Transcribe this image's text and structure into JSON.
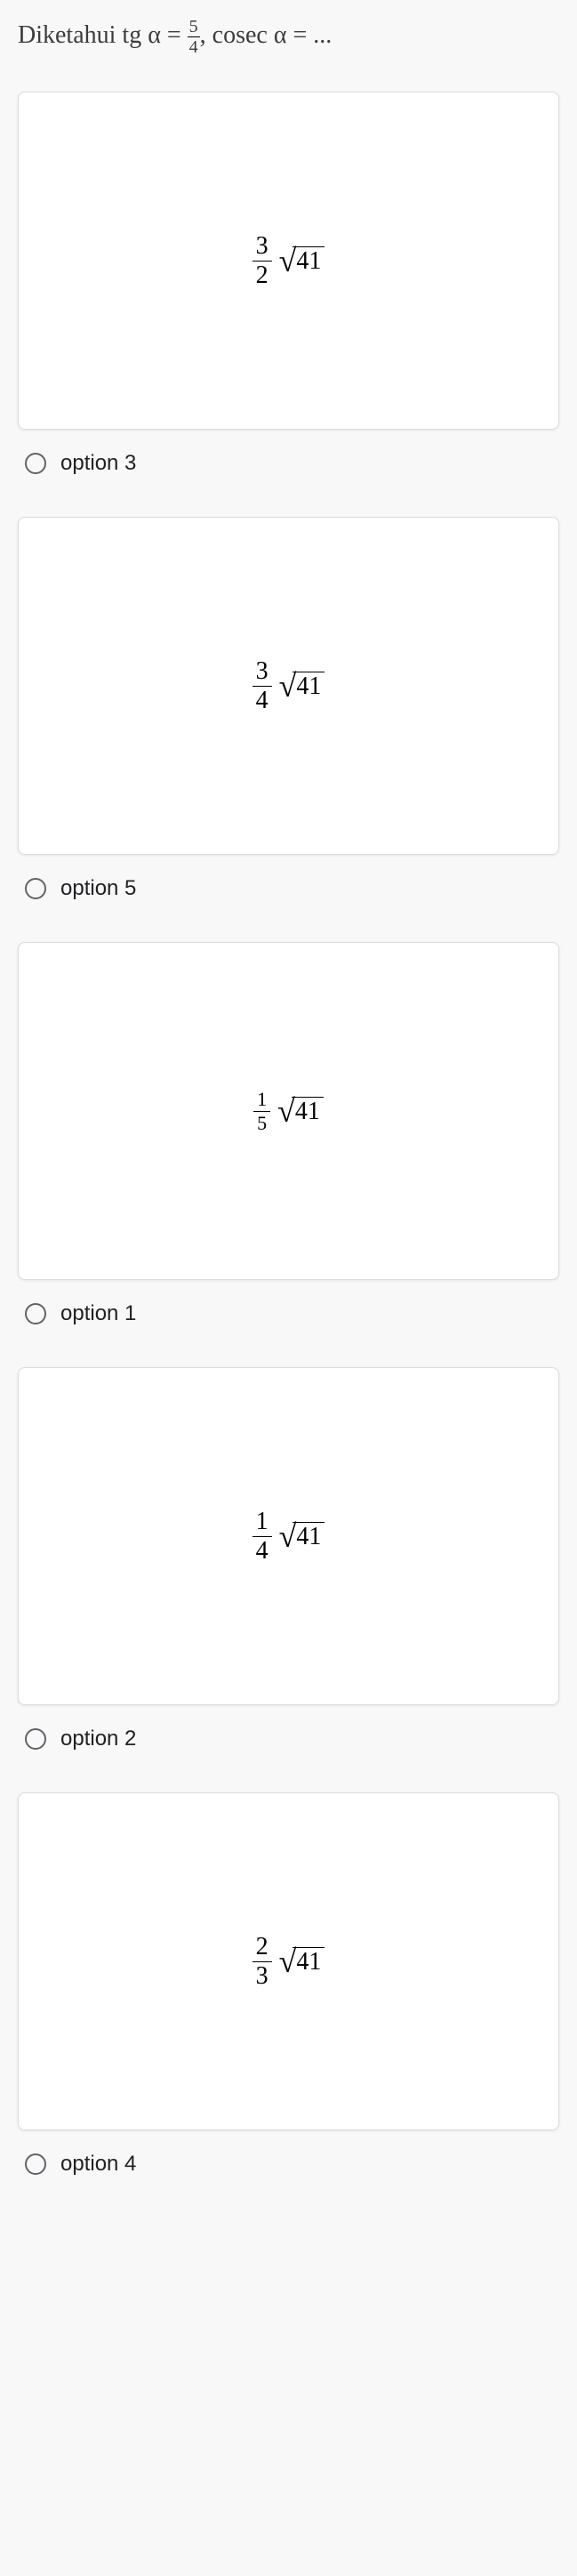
{
  "question": {
    "prefix": "Diketahui tg α =",
    "frac_num": "5",
    "frac_den": "4",
    "suffix": ", cosec α = ..."
  },
  "options": [
    {
      "label": "option 3",
      "frac_num": "3",
      "frac_den": "2",
      "sqrt_arg": "41",
      "frac_small": false
    },
    {
      "label": "option 5",
      "frac_num": "3",
      "frac_den": "4",
      "sqrt_arg": "41",
      "frac_small": false
    },
    {
      "label": "option 1",
      "frac_num": "1",
      "frac_den": "5",
      "sqrt_arg": "41",
      "frac_small": true
    },
    {
      "label": "option 2",
      "frac_num": "1",
      "frac_den": "4",
      "sqrt_arg": "41",
      "frac_small": false
    },
    {
      "label": "option 4",
      "frac_num": "2",
      "frac_den": "3",
      "sqrt_arg": "41",
      "frac_small": false
    }
  ],
  "colors": {
    "card_bg": "#ffffff",
    "card_border": "#dadce0",
    "body_bg": "#f8f8f8",
    "text": "#202124",
    "radio_border": "#5f6368"
  }
}
